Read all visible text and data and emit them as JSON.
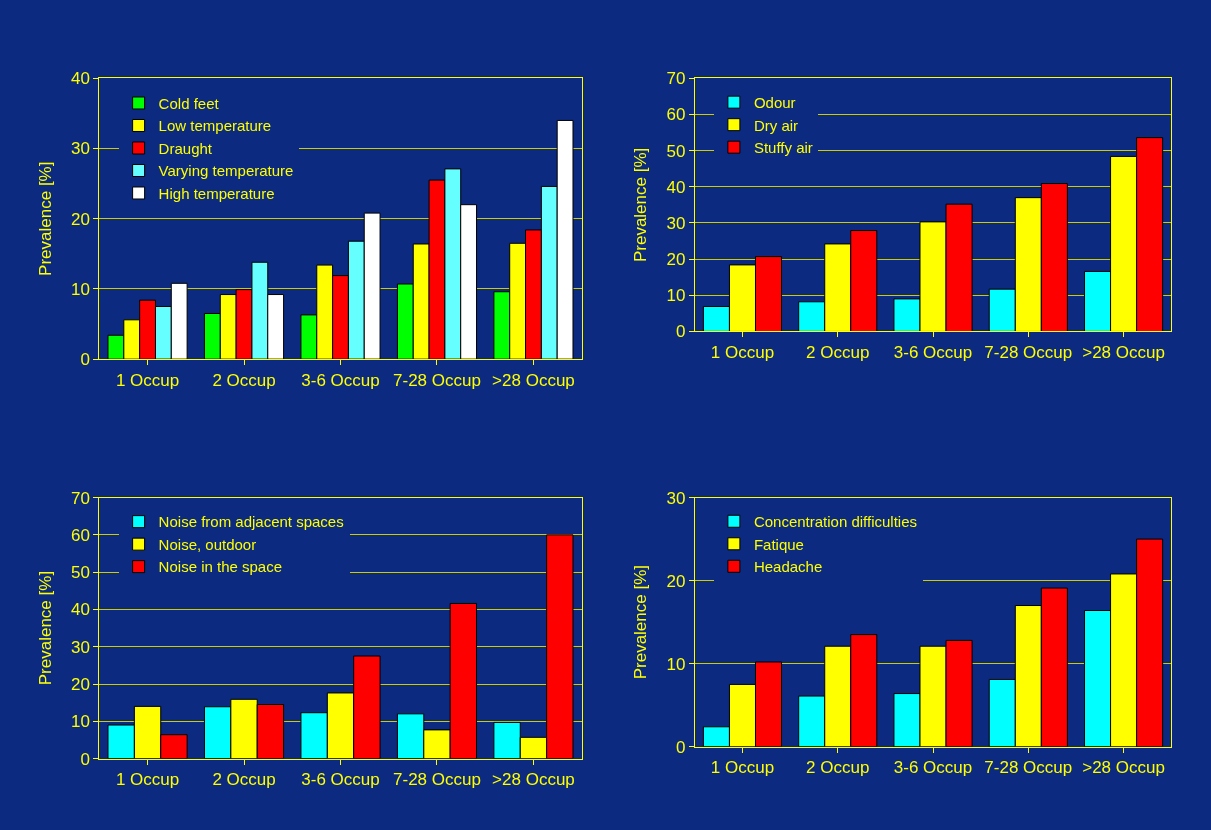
{
  "chart_data": [
    {
      "type": "bar",
      "ylabel": "Prevalence [%]",
      "categories": [
        "1 Occup",
        "2 Occup",
        "3-6 Occup",
        "7-28 Occup",
        ">28 Occup"
      ],
      "ylim": [
        0,
        40
      ],
      "yticks": [
        0,
        10,
        20,
        30,
        40
      ],
      "grid": "y",
      "legend": "top left",
      "series": [
        {
          "name": "Cold feet",
          "color": "#00ff00",
          "values": [
            3.4,
            6.5,
            6.3,
            10.7,
            9.6
          ]
        },
        {
          "name": "Low temperature",
          "color": "#ffff00",
          "values": [
            5.6,
            9.2,
            13.4,
            16.4,
            16.5
          ]
        },
        {
          "name": "Draught",
          "color": "#ff0000",
          "values": [
            8.4,
            9.9,
            11.9,
            25.5,
            18.4
          ]
        },
        {
          "name": "Varying temperature",
          "color": "#66ffff",
          "values": [
            7.5,
            13.8,
            16.8,
            27.1,
            24.6
          ]
        },
        {
          "name": "High temperature",
          "color": "#ffffff",
          "values": [
            10.8,
            9.2,
            20.8,
            22.0,
            34.0
          ]
        }
      ]
    },
    {
      "type": "bar",
      "ylabel": "Prevalence [%]",
      "categories": [
        "1 Occup",
        "2 Occup",
        "3-6 Occup",
        "7-28 Occup",
        ">28 Occup"
      ],
      "ylim": [
        0,
        70
      ],
      "yticks": [
        0,
        10,
        20,
        30,
        40,
        50,
        60,
        70
      ],
      "grid": "y",
      "legend": "top left",
      "series": [
        {
          "name": "Odour",
          "color": "#00ffff",
          "values": [
            6.9,
            8.2,
            9.0,
            11.7,
            16.6
          ]
        },
        {
          "name": "Dry air",
          "color": "#ffff00",
          "values": [
            18.4,
            24.2,
            30.3,
            37.0,
            48.4
          ]
        },
        {
          "name": "Stuffy air",
          "color": "#ff0000",
          "values": [
            20.7,
            27.9,
            35.2,
            40.9,
            53.6
          ]
        }
      ]
    },
    {
      "type": "bar",
      "ylabel": "Prevalence [%]",
      "categories": [
        "1 Occup",
        "2 Occup",
        "3-6 Occup",
        "7-28 Occup",
        ">28 Occup"
      ],
      "ylim": [
        0,
        70
      ],
      "yticks": [
        0,
        10,
        20,
        30,
        40,
        50,
        60,
        70
      ],
      "grid": "y",
      "legend": "top left",
      "series": [
        {
          "name": "Noise from adjacent spaces",
          "color": "#00ffff",
          "values": [
            9.0,
            13.9,
            12.3,
            12.0,
            9.7
          ]
        },
        {
          "name": "Noise, outdoor",
          "color": "#ffff00",
          "values": [
            14.0,
            15.9,
            17.6,
            7.7,
            5.7
          ]
        },
        {
          "name": "Noise in the space",
          "color": "#ff0000",
          "values": [
            6.4,
            14.5,
            27.5,
            41.6,
            60.0
          ]
        }
      ]
    },
    {
      "type": "bar",
      "ylabel": "Prevalence [%]",
      "categories": [
        "1 Occup",
        "2 Occup",
        "3-6 Occup",
        "7-28 Occup",
        ">28 Occup"
      ],
      "ylim": [
        0,
        30
      ],
      "yticks": [
        0,
        10,
        20,
        30
      ],
      "grid": "y",
      "legend": "top left",
      "series": [
        {
          "name": "Concentration difficulties",
          "color": "#00ffff",
          "values": [
            2.4,
            6.1,
            6.4,
            8.1,
            16.4
          ]
        },
        {
          "name": "Fatique",
          "color": "#ffff00",
          "values": [
            7.5,
            12.1,
            12.1,
            17.0,
            20.8
          ]
        },
        {
          "name": "Headache",
          "color": "#ff0000",
          "values": [
            10.2,
            13.5,
            12.8,
            19.1,
            25.0
          ]
        }
      ]
    }
  ]
}
